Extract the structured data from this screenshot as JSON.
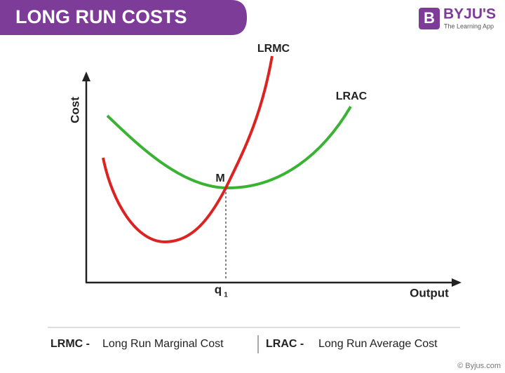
{
  "header": {
    "title": "LONG RUN COSTS"
  },
  "logo": {
    "name": "BYJU'S",
    "tagline": "The Learning App",
    "icon": "B"
  },
  "axes": {
    "y_label": "Cost",
    "x_label": "Output"
  },
  "curves": {
    "lrmc": "LRMC",
    "lrac": "LRAC"
  },
  "point": {
    "label": "M"
  },
  "quantity": {
    "label": "q",
    "subscript": "1"
  },
  "legend": [
    {
      "abbr": "LRMC -",
      "text": "Long Run Marginal Cost"
    },
    {
      "abbr": "LRAC -",
      "text": "Long Run Average Cost"
    }
  ],
  "footer": {
    "credit": "© Byjus.com"
  }
}
